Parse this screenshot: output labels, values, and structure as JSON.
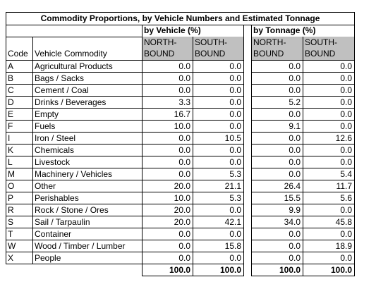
{
  "title": "Commodity Proportions, by Vehicle Numbers and Estimated Tonnage",
  "group_headers": {
    "vehicle": "by Vehicle (%)",
    "tonnage": "by Tonnage (%)"
  },
  "column_headers": {
    "code": "Code",
    "commodity": "Vehicle Commodity",
    "north_line1": "NORTH-",
    "north_line2": "BOUND",
    "south_line1": "SOUTH-",
    "south_line2": "BOUND"
  },
  "rows": [
    {
      "code": "A",
      "commodity": "Agricultural Products",
      "veh_n": "0.0",
      "veh_s": "0.0",
      "ton_n": "0.0",
      "ton_s": "0.0"
    },
    {
      "code": "B",
      "commodity": "Bags / Sacks",
      "veh_n": "0.0",
      "veh_s": "0.0",
      "ton_n": "0.0",
      "ton_s": "0.0"
    },
    {
      "code": "C",
      "commodity": "Cement / Coal",
      "veh_n": "0.0",
      "veh_s": "0.0",
      "ton_n": "0.0",
      "ton_s": "0.0"
    },
    {
      "code": "D",
      "commodity": "Drinks / Beverages",
      "veh_n": "3.3",
      "veh_s": "0.0",
      "ton_n": "5.2",
      "ton_s": "0.0"
    },
    {
      "code": "E",
      "commodity": "Empty",
      "veh_n": "16.7",
      "veh_s": "0.0",
      "ton_n": "0.0",
      "ton_s": "0.0"
    },
    {
      "code": "F",
      "commodity": "Fuels",
      "veh_n": "10.0",
      "veh_s": "0.0",
      "ton_n": "9.1",
      "ton_s": "0.0"
    },
    {
      "code": "I",
      "commodity": "Iron / Steel",
      "veh_n": "0.0",
      "veh_s": "10.5",
      "ton_n": "0.0",
      "ton_s": "12.6"
    },
    {
      "code": "K",
      "commodity": "Chemicals",
      "veh_n": "0.0",
      "veh_s": "0.0",
      "ton_n": "0.0",
      "ton_s": "0.0"
    },
    {
      "code": "L",
      "commodity": "Livestock",
      "veh_n": "0.0",
      "veh_s": "0.0",
      "ton_n": "0.0",
      "ton_s": "0.0"
    },
    {
      "code": "M",
      "commodity": "Machinery / Vehicles",
      "veh_n": "0.0",
      "veh_s": "5.3",
      "ton_n": "0.0",
      "ton_s": "5.4"
    },
    {
      "code": "O",
      "commodity": "Other",
      "veh_n": "20.0",
      "veh_s": "21.1",
      "ton_n": "26.4",
      "ton_s": "11.7"
    },
    {
      "code": "P",
      "commodity": "Perishables",
      "veh_n": "10.0",
      "veh_s": "5.3",
      "ton_n": "15.5",
      "ton_s": "5.6"
    },
    {
      "code": "R",
      "commodity": "Rock / Stone / Ores",
      "veh_n": "20.0",
      "veh_s": "0.0",
      "ton_n": "9.9",
      "ton_s": "0.0"
    },
    {
      "code": "S",
      "commodity": "Sail / Tarpaulin",
      "veh_n": "20.0",
      "veh_s": "42.1",
      "ton_n": "34.0",
      "ton_s": "45.8"
    },
    {
      "code": "T",
      "commodity": "Container",
      "veh_n": "0.0",
      "veh_s": "0.0",
      "ton_n": "0.0",
      "ton_s": "0.0"
    },
    {
      "code": "W",
      "commodity": "Wood / Timber / Lumber",
      "veh_n": "0.0",
      "veh_s": "15.8",
      "ton_n": "0.0",
      "ton_s": "18.9"
    },
    {
      "code": "X",
      "commodity": "People",
      "veh_n": "0.0",
      "veh_s": "0.0",
      "ton_n": "0.0",
      "ton_s": "0.0"
    }
  ],
  "totals": {
    "veh_n": "100.0",
    "veh_s": "100.0",
    "ton_n": "100.0",
    "ton_s": "100.0"
  },
  "colors": {
    "header_gray": "#c0c0c0",
    "border": "#000000",
    "background": "#ffffff"
  }
}
